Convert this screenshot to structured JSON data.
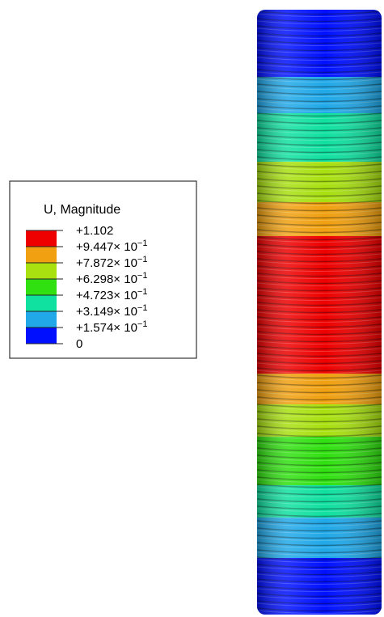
{
  "legend": {
    "title": "U, Magnitude",
    "labels": [
      {
        "text": "+1.102"
      },
      {
        "text": "+9.447× 10",
        "exponent": "−1"
      },
      {
        "text": "+7.872× 10",
        "exponent": "−1"
      },
      {
        "text": "+6.298× 10",
        "exponent": "−1"
      },
      {
        "text": "+4.723× 10",
        "exponent": "−1"
      },
      {
        "text": "+3.149× 10",
        "exponent": "−1"
      },
      {
        "text": "+1.574× 10",
        "exponent": "−1"
      },
      {
        "text": "0"
      }
    ],
    "colors": [
      "#ee0000",
      "#f0a010",
      "#a8e010",
      "#30e010",
      "#10e0a0",
      "#20a8e8",
      "#0010ff"
    ]
  }
}
